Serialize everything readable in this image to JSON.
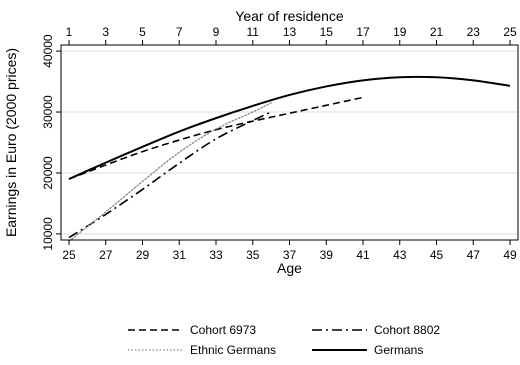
{
  "chart_data": {
    "type": "line",
    "xlabel": "Age",
    "x2label": "Year of residence",
    "ylabel": "Earnings in Euro (2000 prices)",
    "xlim": [
      25,
      49
    ],
    "ylim": [
      9000,
      41000
    ],
    "xticks": [
      25,
      27,
      29,
      31,
      33,
      35,
      37,
      39,
      41,
      43,
      45,
      47,
      49
    ],
    "x2ticks": [
      1,
      3,
      5,
      7,
      9,
      11,
      13,
      15,
      17,
      19,
      21,
      23,
      25
    ],
    "yticks": [
      10000,
      20000,
      30000,
      40000
    ],
    "grid": true,
    "legend_position": "bottom",
    "series": [
      {
        "name": "Cohort 6973",
        "style": "dash",
        "color": "#000000",
        "x": [
          25,
          27,
          29,
          31,
          33,
          35,
          37,
          39,
          41
        ],
        "y": [
          19000,
          21300,
          23500,
          25400,
          27100,
          28500,
          29800,
          31100,
          32400
        ]
      },
      {
        "name": "Cohort 8802",
        "style": "dashdot",
        "color": "#000000",
        "x": [
          25,
          27,
          29,
          31,
          33,
          35,
          36
        ],
        "y": [
          9400,
          13200,
          17300,
          21600,
          25600,
          28600,
          30000
        ]
      },
      {
        "name": "Ethnic Germans",
        "style": "dot",
        "color": "#888888",
        "x": [
          25,
          27,
          29,
          31,
          33,
          35,
          36
        ],
        "y": [
          8800,
          13600,
          18600,
          23400,
          27200,
          30000,
          31500
        ]
      },
      {
        "name": "Germans",
        "style": "solid",
        "color": "#000000",
        "x": [
          25,
          27,
          29,
          31,
          33,
          35,
          37,
          39,
          41,
          43,
          45,
          47,
          49
        ],
        "y": [
          19000,
          21700,
          24300,
          26800,
          29000,
          31000,
          32800,
          34200,
          35200,
          35700,
          35700,
          35200,
          34300
        ]
      }
    ]
  }
}
